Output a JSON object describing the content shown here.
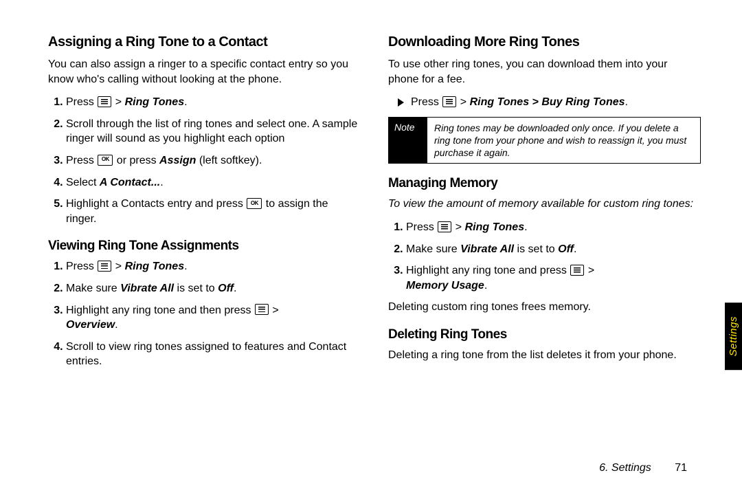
{
  "side_tab": "Settings",
  "footer": {
    "chapter": "6. Settings",
    "page": "71"
  },
  "note": {
    "label": "Note",
    "text": "Ring tones may be downloaded only once. If you delete a ring tone from your phone and wish to reassign it, you must purchase it again."
  },
  "left": {
    "h_assign": "Assigning a Ring Tone to a Contact",
    "p_assign": "You can also assign a ringer to a specific contact entry so you know who's calling without looking at the phone.",
    "steps_assign": {
      "s1_prefix": "Press ",
      "s1_suffix": " > ",
      "s1_path": "Ring Tones",
      "s1_end": ".",
      "s2": "Scroll through the list of ring tones and select one. A sample ringer will sound as you highlight each option",
      "s3a": "Press ",
      "s3b": " or press ",
      "s3c": "Assign",
      "s3d": " (left softkey).",
      "s4a": "Select ",
      "s4b": "A Contact...",
      "s4c": ".",
      "s5a": "Highlight a Contacts entry and press ",
      "s5b": " to assign the ringer."
    },
    "h_view": "Viewing Ring Tone Assignments",
    "steps_view": {
      "s1_prefix": "Press ",
      "s1_suffix": " > ",
      "s1_path": "Ring Tones",
      "s1_end": ".",
      "s2a": "Make sure ",
      "s2b": "Vibrate All",
      "s2c": " is set to ",
      "s2d": "Off",
      "s2e": ".",
      "s3a": "Highlight any ring tone and then press ",
      "s3b": " > ",
      "s3c": "Overview",
      "s3d": ".",
      "s4": "Scroll to view ring tones assigned to features and Contact entries."
    }
  },
  "right": {
    "h_download": "Downloading More Ring Tones",
    "p_download": "To use other ring tones, you can download them into your phone for a fee.",
    "dl_step_prefix": "Press ",
    "dl_step_suffix": " > ",
    "dl_step_path": "Ring Tones > Buy Ring Tones",
    "dl_step_end": ".",
    "h_memory": "Managing Memory",
    "p_memory_intro": "To view the amount of memory available for custom ring tones:",
    "steps_mem": {
      "s1_prefix": "Press ",
      "s1_suffix": " > ",
      "s1_path": "Ring Tones",
      "s1_end": ".",
      "s2a": "Make sure ",
      "s2b": "Vibrate All",
      "s2c": " is set to ",
      "s2d": "Off",
      "s2e": ".",
      "s3a": "Highlight any ring tone and press ",
      "s3b": " > ",
      "s3c": "Memory Usage",
      "s3d": "."
    },
    "p_memory_out": "Deleting custom ring tones frees memory.",
    "h_delete": "Deleting Ring Tones",
    "p_delete": "Deleting a ring tone from the list deletes it from your phone."
  }
}
